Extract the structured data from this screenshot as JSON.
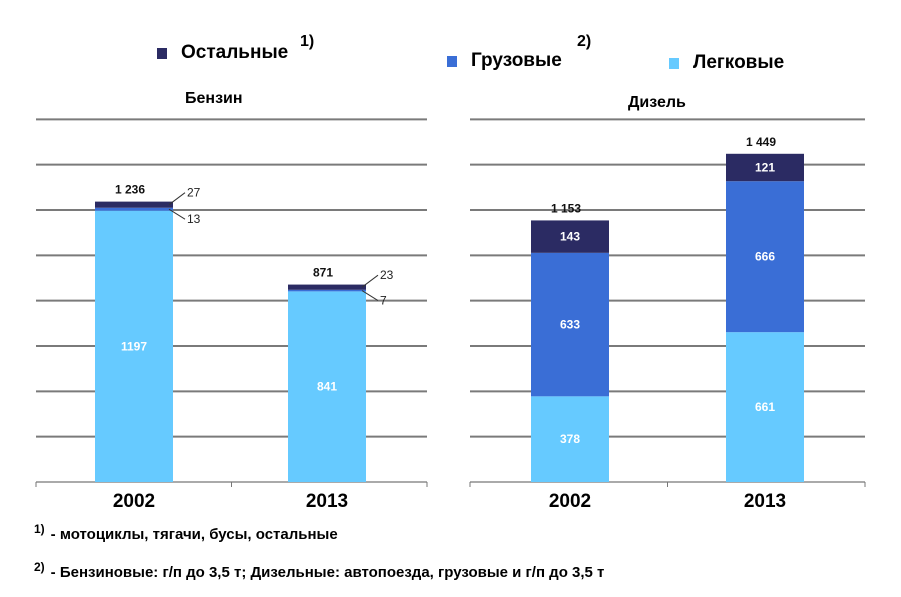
{
  "legend": [
    {
      "label": "Остальные",
      "color": "#2b2b63",
      "note": "1)"
    },
    {
      "label": "Грузовые",
      "color": "#3a6ed6",
      "note": "2)"
    },
    {
      "label": "Легковые",
      "color": "#66caff",
      "note": ""
    }
  ],
  "footnotes": [
    {
      "num": "1)",
      "text": "- мотоциклы, тягачи, бусы, остальные"
    },
    {
      "num": "2)",
      "text": "- Бензиновые: г/п до 3,5 т; Дизельные: автопоезда, грузовые и г/п до 3,5 т"
    }
  ],
  "chart_data": [
    {
      "type": "bar",
      "stacked": true,
      "title": "Бензин",
      "categories": [
        "2002",
        "2013"
      ],
      "totals": [
        1236,
        871
      ],
      "total_labels": [
        "1 236",
        "871"
      ],
      "series": [
        {
          "name": "Легковые",
          "values": [
            1197,
            841
          ],
          "labels": [
            "1197",
            "841"
          ]
        },
        {
          "name": "Грузовые",
          "values": [
            13,
            7
          ],
          "labels": [
            "13",
            "7"
          ]
        },
        {
          "name": "Остальные",
          "values": [
            27,
            23
          ],
          "labels": [
            "27",
            "23"
          ]
        }
      ],
      "ylim": [
        0,
        1600
      ],
      "grid": true
    },
    {
      "type": "bar",
      "stacked": true,
      "title": "Дизель",
      "categories": [
        "2002",
        "2013"
      ],
      "totals": [
        1153,
        1449
      ],
      "total_labels": [
        "1 153",
        "1 449"
      ],
      "series": [
        {
          "name": "Легковые",
          "values": [
            378,
            661
          ],
          "labels": [
            "378",
            "661"
          ]
        },
        {
          "name": "Грузовые",
          "values": [
            633,
            666
          ],
          "labels": [
            "633",
            "666"
          ]
        },
        {
          "name": "Остальные",
          "values": [
            143,
            121
          ],
          "labels": [
            "143",
            "121"
          ]
        }
      ],
      "ylim": [
        0,
        1600
      ],
      "grid": true
    }
  ]
}
